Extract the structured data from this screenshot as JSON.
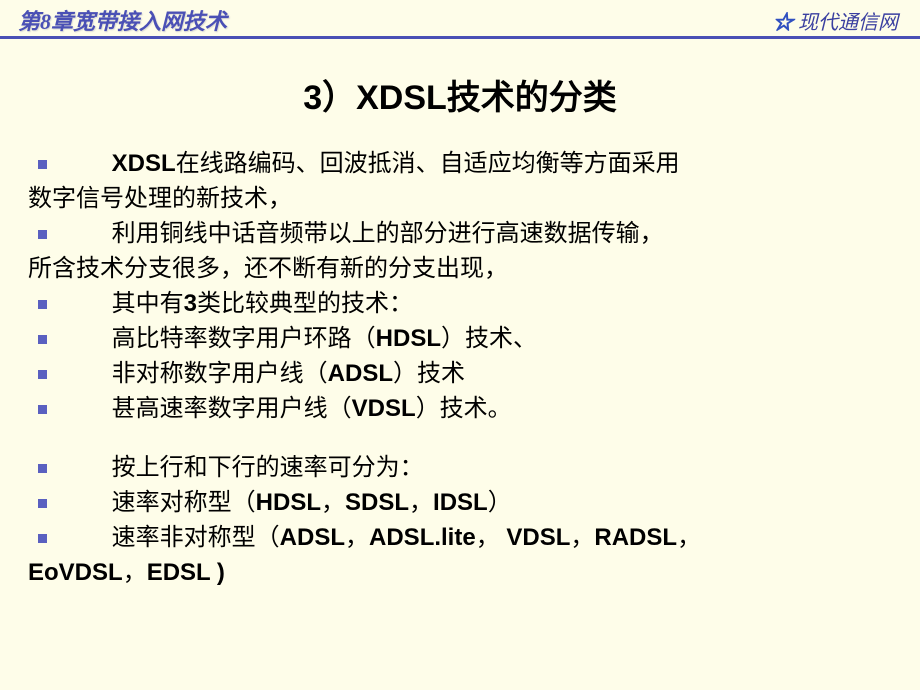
{
  "header": {
    "chapter_title": "第8章宽带接入网技术",
    "book_name": "现代通信网"
  },
  "slide_title": "3）XDSL技术的分类",
  "bullets": [
    {
      "indent_html": "&nbsp;&nbsp;&nbsp;&nbsp;<b>XDSL</b>在线路编码、回波抵消、自适应均衡等方面采用",
      "wrap": "数字信号处理的新技术，"
    },
    {
      "indent_html": "&nbsp;&nbsp;&nbsp;&nbsp;利用铜线中话音频带以上的部分进行高速数据传输，",
      "wrap": "所含技术分支很多，还不断有新的分支出现，"
    },
    {
      "indent_html": "&nbsp;&nbsp;&nbsp;&nbsp;其中有<b>3</b>类比较典型的技术："
    },
    {
      "indent_html": "&nbsp;&nbsp;&nbsp;&nbsp;高比特率数字用户环路（<b>HDSL</b>）技术、"
    },
    {
      "indent_html": "&nbsp;&nbsp;&nbsp;&nbsp;非对称数字用户线（<b>ADSL</b>）技术"
    },
    {
      "indent_html": "&nbsp;&nbsp;&nbsp;&nbsp;甚高速率数字用户线（<b>VDSL</b>）技术。"
    },
    {
      "spacer": true
    },
    {
      "indent_html": "&nbsp;&nbsp;&nbsp;&nbsp;按上行和下行的速率可分为："
    },
    {
      "indent_html": "&nbsp;&nbsp;&nbsp;&nbsp;速率对称型（<b>HDSL</b>，<b>SDSL</b>，<b>IDSL</b>）"
    },
    {
      "indent_html": "&nbsp;&nbsp;&nbsp;&nbsp;速率非对称型（<b>ADSL</b>，<b>ADSL.lite</b>，&nbsp;<b>VDSL</b>，<b>RADSL</b>，",
      "wrap": "<b>EoVDSL</b>，<b>EDSL )</b>"
    }
  ],
  "colors": {
    "background": "#fefde9",
    "header_text": "#4a50b5",
    "bullet_square": "#5a60c0",
    "body_text": "#000000"
  }
}
